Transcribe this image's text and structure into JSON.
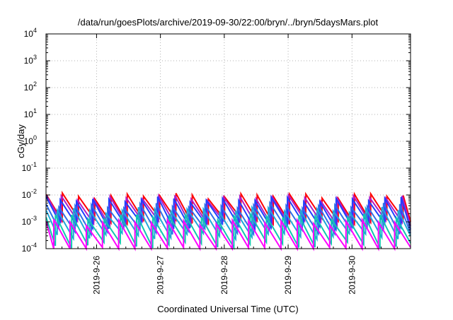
{
  "chart_data": {
    "type": "line",
    "title": "/data/run/goesPlots/archive/2019-09-30/22:00/bryn/../bryn/5daysMars.plot",
    "xlabel": "Coordinated Universal Time (UTC)",
    "ylabel": "cGy/day",
    "y_scale": "log",
    "ylim": [
      0.0001,
      10000
    ],
    "xlim": [
      "2019-09-25 05:00",
      "2019-09-30 22:00"
    ],
    "grid": true,
    "y_ticks": [
      {
        "value": 0.0001,
        "base": "10",
        "exp": "-4"
      },
      {
        "value": 0.001,
        "base": "10",
        "exp": "-3"
      },
      {
        "value": 0.01,
        "base": "10",
        "exp": "-2"
      },
      {
        "value": 0.1,
        "base": "10",
        "exp": "-1"
      },
      {
        "value": 1,
        "base": "10",
        "exp": "0"
      },
      {
        "value": 10,
        "base": "10",
        "exp": "1"
      },
      {
        "value": 100,
        "base": "10",
        "exp": "2"
      },
      {
        "value": 1000,
        "base": "10",
        "exp": "3"
      },
      {
        "value": 10000,
        "base": "10",
        "exp": "4"
      }
    ],
    "x_ticks": [
      {
        "value": "2019-09-26",
        "label": "2019-9-26"
      },
      {
        "value": "2019-09-27",
        "label": "2019-9-27"
      },
      {
        "value": "2019-09-28",
        "label": "2019-9-28"
      },
      {
        "value": "2019-09-29",
        "label": "2019-9-29"
      },
      {
        "value": "2019-09-30",
        "label": "2019-9-30"
      }
    ],
    "series": [
      {
        "color": "#ff0000",
        "peak": 0.0095,
        "trough": 0.0011,
        "phase": 0.0
      },
      {
        "color": "#b01cc8",
        "peak": 0.008,
        "trough": 0.0009,
        "phase": 0.4
      },
      {
        "color": "#1f3fff",
        "peak": 0.0068,
        "trough": 0.0007,
        "phase": 0.8
      },
      {
        "color": "#2f6fe8",
        "peak": 0.004,
        "trough": 0.00045,
        "phase": 1.3
      },
      {
        "color": "#20a8d8",
        "peak": 0.0028,
        "trough": 0.0003,
        "phase": 1.9
      },
      {
        "color": "#10c8b0",
        "peak": 0.0016,
        "trough": 0.00014,
        "phase": 2.6
      },
      {
        "color": "#ff00ff",
        "peak": 0.001,
        "trough": 9e-05,
        "phase": 3.2
      }
    ],
    "cycle_hours": 6.1
  }
}
